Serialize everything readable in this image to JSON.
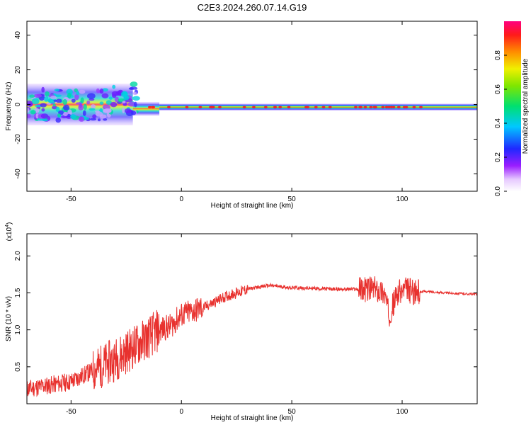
{
  "title": "C2E3.2024.260.07.14.G19",
  "chart_data": [
    {
      "type": "heatmap",
      "xlabel": "Height of straight line (km)",
      "ylabel": "Frequency (Hz)",
      "xlim": [
        -70,
        134
      ],
      "ylim": [
        -50,
        48
      ],
      "xticks": [
        -50,
        0,
        50,
        100
      ],
      "yticks": [
        -40,
        -20,
        0,
        20,
        40
      ],
      "colorbar": {
        "label": "Normalized spectral amplitude",
        "ticks": [
          "0.0",
          "0.2",
          "0.4",
          "0.6",
          "0.8"
        ],
        "range": [
          0,
          1
        ]
      },
      "description_bands": [
        {
          "x_from": -70,
          "x_to": -22,
          "freq_center": 0,
          "freq_spread": 12,
          "amplitude": 0.35
        },
        {
          "x_from": -22,
          "x_to": -10,
          "freq_center": -2.5,
          "freq_spread": 4,
          "amplitude": 0.6
        },
        {
          "x_from": -10,
          "x_to": 134,
          "freq_center": -1.5,
          "freq_spread": 2,
          "amplitude": 0.9
        }
      ]
    },
    {
      "type": "line",
      "xlabel": "Height of straight line (km)",
      "ylabel": "SNR (10 * v/v)",
      "yscale_label": "(x10",
      "yscale_exp": "4",
      "xlim": [
        -70,
        134
      ],
      "ylim": [
        0,
        2.3
      ],
      "xticks": [
        -50,
        0,
        50,
        100
      ],
      "yticks": [
        "0.5",
        "1.0",
        "1.5",
        "2.0"
      ],
      "color": "#e8312e",
      "x": [
        -70,
        -60,
        -50,
        -40,
        -30,
        -20,
        -10,
        -5,
        0,
        10,
        20,
        30,
        35,
        40,
        50,
        60,
        70,
        80,
        88,
        92,
        94,
        98,
        102,
        106,
        110,
        120,
        134
      ],
      "y": [
        0.2,
        0.25,
        0.3,
        0.45,
        0.6,
        0.8,
        1.0,
        1.05,
        1.2,
        1.3,
        1.45,
        1.55,
        1.58,
        1.6,
        1.57,
        1.56,
        1.55,
        1.55,
        1.55,
        1.5,
        1.2,
        1.5,
        1.55,
        1.5,
        1.52,
        1.5,
        1.48
      ]
    }
  ]
}
